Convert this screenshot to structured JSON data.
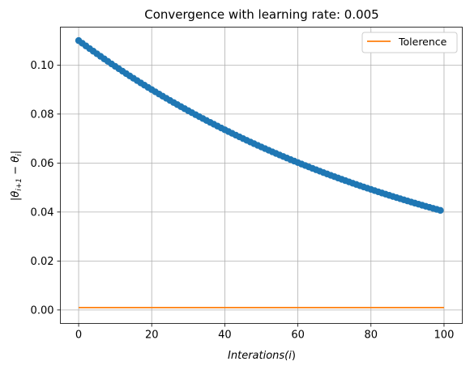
{
  "chart_data": {
    "type": "scatter",
    "title": "Convergence with learning rate: 0.005",
    "xlabel": "Interations(i)",
    "xlabel_parts": {
      "main": "Interations(",
      "var": "i",
      "close": ")"
    },
    "ylabel": "|θi+1 − θi|",
    "ylabel_parts": {
      "bar": "|",
      "theta": "θ",
      "sub_a": "i+1",
      "minus": " − ",
      "sub_b": "i"
    },
    "xlim": [
      -5,
      105
    ],
    "ylim": [
      -0.0055,
      0.1155
    ],
    "x_ticks": [
      0,
      20,
      40,
      60,
      80,
      100
    ],
    "x_tick_labels": [
      "0",
      "20",
      "40",
      "60",
      "80",
      "100"
    ],
    "y_ticks": [
      0.0,
      0.02,
      0.04,
      0.06,
      0.08,
      0.1
    ],
    "y_tick_labels": [
      "0.00",
      "0.02",
      "0.04",
      "0.06",
      "0.08",
      "0.10"
    ],
    "grid": true,
    "legend_position": "top-right",
    "series": [
      {
        "kind": "scatter-line",
        "color": "#1f77b4",
        "x_start": 0,
        "x_end": 99,
        "y_start": 0.11,
        "decay_per_step": 0.99,
        "description": "y = 0.110 * 0.99^i for i = 0..99"
      },
      {
        "name": "Tolerence",
        "kind": "line",
        "color": "#ff7f0e",
        "x": [
          0,
          100
        ],
        "y": [
          0.001,
          0.001
        ]
      }
    ]
  }
}
